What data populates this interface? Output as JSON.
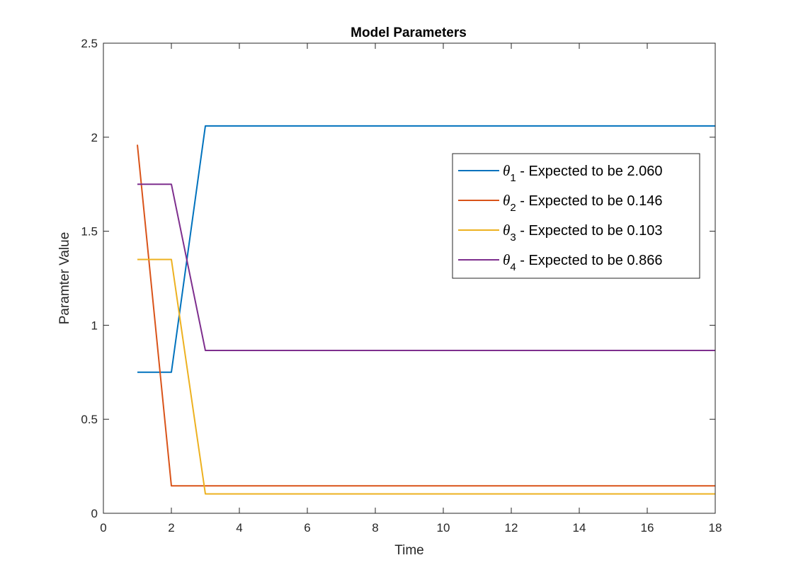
{
  "chart_data": {
    "type": "line",
    "title": "Model Parameters",
    "xlabel": "Time",
    "ylabel": "Paramter Value",
    "xlim": [
      0,
      18
    ],
    "ylim": [
      0,
      2.5
    ],
    "xticks": [
      0,
      2,
      4,
      6,
      8,
      10,
      12,
      14,
      16,
      18
    ],
    "yticks": [
      0,
      0.5,
      1,
      1.5,
      2,
      2.5
    ],
    "xtick_labels": [
      "0",
      "2",
      "4",
      "6",
      "8",
      "10",
      "12",
      "14",
      "16",
      "18"
    ],
    "ytick_labels": [
      "0",
      "0.5",
      "1",
      "1.5",
      "2",
      "2.5"
    ],
    "grid": false,
    "box": true,
    "legend_position": "upper-right",
    "x": [
      1,
      2,
      3,
      18
    ],
    "series": [
      {
        "symbol": "θ",
        "subscript": "1",
        "legend_text": " - Expected to be 2.060",
        "color": "#0072BD",
        "values": [
          0.75,
          0.75,
          2.06,
          2.06
        ]
      },
      {
        "symbol": "θ",
        "subscript": "2",
        "legend_text": " - Expected to be 0.146",
        "color": "#D95319",
        "values": [
          1.96,
          0.146,
          0.146,
          0.146
        ]
      },
      {
        "symbol": "θ",
        "subscript": "3",
        "legend_text": " - Expected to be 0.103",
        "color": "#EDB120",
        "values": [
          1.35,
          1.35,
          0.103,
          0.103
        ]
      },
      {
        "symbol": "θ",
        "subscript": "4",
        "legend_text": " - Expected to be 0.866",
        "color": "#7E2F8E",
        "values": [
          1.75,
          1.75,
          0.866,
          0.866
        ]
      }
    ]
  }
}
